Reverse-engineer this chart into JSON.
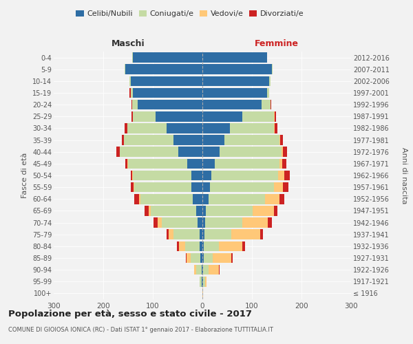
{
  "age_groups": [
    "100+",
    "95-99",
    "90-94",
    "85-89",
    "80-84",
    "75-79",
    "70-74",
    "65-69",
    "60-64",
    "55-59",
    "50-54",
    "45-49",
    "40-44",
    "35-39",
    "30-34",
    "25-29",
    "20-24",
    "15-19",
    "10-14",
    "5-9",
    "0-4"
  ],
  "birth_years": [
    "≤ 1916",
    "1917-1921",
    "1922-1926",
    "1927-1931",
    "1932-1936",
    "1937-1941",
    "1942-1946",
    "1947-1951",
    "1952-1956",
    "1957-1961",
    "1962-1966",
    "1967-1971",
    "1972-1976",
    "1977-1981",
    "1982-1986",
    "1987-1991",
    "1992-1996",
    "1997-2001",
    "2002-2006",
    "2007-2011",
    "2012-2016"
  ],
  "males": {
    "celibi": [
      0,
      2,
      2,
      4,
      5,
      6,
      10,
      12,
      20,
      22,
      22,
      30,
      48,
      58,
      72,
      95,
      130,
      140,
      145,
      155,
      140
    ],
    "coniugati": [
      0,
      3,
      10,
      20,
      30,
      52,
      72,
      92,
      105,
      115,
      118,
      120,
      118,
      100,
      80,
      45,
      12,
      5,
      2,
      2,
      1
    ],
    "vedovi": [
      0,
      1,
      4,
      8,
      12,
      10,
      8,
      5,
      3,
      2,
      1,
      1,
      0,
      0,
      0,
      0,
      0,
      0,
      0,
      0,
      0
    ],
    "divorziati": [
      0,
      0,
      0,
      1,
      5,
      4,
      8,
      8,
      10,
      5,
      4,
      5,
      8,
      5,
      5,
      3,
      1,
      2,
      0,
      0,
      0
    ]
  },
  "females": {
    "nubili": [
      0,
      2,
      2,
      3,
      3,
      4,
      5,
      7,
      12,
      15,
      18,
      25,
      35,
      45,
      55,
      80,
      120,
      130,
      135,
      140,
      130
    ],
    "coniugate": [
      0,
      3,
      10,
      18,
      30,
      55,
      75,
      95,
      115,
      130,
      135,
      130,
      125,
      110,
      90,
      65,
      18,
      5,
      2,
      2,
      1
    ],
    "vedove": [
      1,
      4,
      22,
      38,
      48,
      58,
      52,
      42,
      28,
      18,
      12,
      6,
      3,
      2,
      1,
      1,
      0,
      0,
      0,
      0,
      0
    ],
    "divorziate": [
      0,
      0,
      1,
      2,
      5,
      5,
      8,
      8,
      10,
      10,
      12,
      8,
      8,
      5,
      5,
      2,
      1,
      0,
      0,
      0,
      0
    ]
  },
  "colors": {
    "celibi": "#2e6da4",
    "coniugati": "#c5dba4",
    "vedovi": "#ffc878",
    "divorziati": "#cc2222"
  },
  "xlim": 300,
  "title": "Popolazione per età, sesso e stato civile - 2017",
  "subtitle": "COMUNE DI GIOIOSA IONICA (RC) - Dati ISTAT 1° gennaio 2017 - Elaborazione TUTTITALIA.IT",
  "ylabel_left": "Fasce di età",
  "ylabel_right": "Anni di nascita",
  "xlabel_left": "Maschi",
  "xlabel_right": "Femmine",
  "bg_color": "#f2f2f2",
  "legend_labels": [
    "Celibi/Nubili",
    "Coniugati/e",
    "Vedovi/e",
    "Divorziati/e"
  ]
}
